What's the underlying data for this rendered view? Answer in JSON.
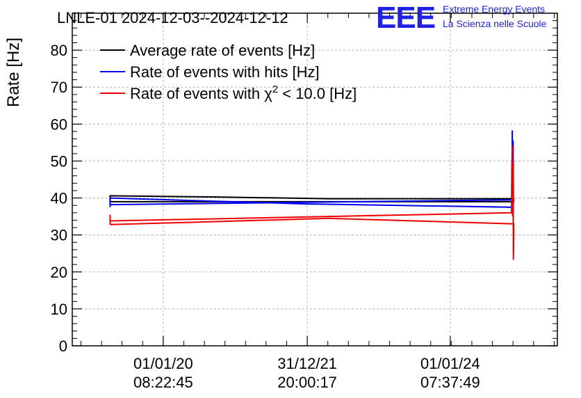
{
  "chart_data": {
    "type": "line",
    "title": "LNLE-01 2024-12-03--2024-12-12",
    "ylabel": "Rate [Hz]",
    "xlabel": "",
    "ylim": [
      0,
      90
    ],
    "yticks": [
      0,
      10,
      20,
      30,
      40,
      50,
      60,
      70,
      80
    ],
    "xticks": [
      {
        "pos": 0.1875,
        "line1": "01/01/20",
        "line2": "08:22:45"
      },
      {
        "pos": 0.4844,
        "line1": "31/12/21",
        "line2": "20:00:17"
      },
      {
        "pos": 0.7792,
        "line1": "01/01/24",
        "line2": "07:37:49"
      }
    ],
    "grid": true,
    "legend": {
      "placement": "top-left",
      "entries": [
        {
          "label": "Average rate of events [Hz]",
          "color": "#000000"
        },
        {
          "label": "Rate of events with hits [Hz]",
          "color": "#0000ee"
        },
        {
          "label_prefix": "Rate of events with ",
          "symbol": "χ",
          "sup": "2",
          "label_suffix": " < 10.0 [Hz]",
          "color": "#ee0000"
        }
      ]
    },
    "series": [
      {
        "name": "Average rate of events [Hz]",
        "color": "#000000",
        "points": [
          [
            0.0779,
            38.8
          ],
          [
            0.0779,
            40.6
          ],
          [
            0.2871,
            40.3
          ],
          [
            0.5296,
            39.8
          ],
          [
            0.9054,
            39.8
          ],
          [
            0.9101,
            39.7
          ],
          [
            0.9101,
            39.0
          ],
          [
            0.0779,
            39.0
          ]
        ]
      },
      {
        "name": "Rate of events with hits [Hz]",
        "color": "#0000ee",
        "points": [
          [
            0.0779,
            37.5
          ],
          [
            0.0779,
            40.0
          ],
          [
            0.4829,
            38.4
          ],
          [
            0.907,
            37.5
          ],
          [
            0.907,
            58.3
          ],
          [
            0.9078,
            36.5
          ],
          [
            0.9086,
            55.6
          ],
          [
            0.9093,
            39.5
          ],
          [
            0.0779,
            38.2
          ]
        ]
      },
      {
        "name": "Rate of events with χ² < 10.0 [Hz]",
        "color": "#ee0000",
        "points": [
          [
            0.0779,
            32.8
          ],
          [
            0.0779,
            35.5
          ],
          [
            0.0779,
            33.8
          ],
          [
            0.9054,
            36.0
          ],
          [
            0.9062,
            48.5
          ],
          [
            0.907,
            54.2
          ],
          [
            0.9078,
            35.0
          ],
          [
            0.9086,
            49.5
          ],
          [
            0.9093,
            23.3
          ],
          [
            0.9101,
            29.5
          ],
          [
            0.9101,
            33.0
          ],
          [
            0.5296,
            34.5
          ],
          [
            0.0779,
            32.8
          ]
        ]
      }
    ]
  },
  "header": {
    "brand_logo": "EEE",
    "brand_line1": "Extreme Energy Events",
    "brand_line2": "La Scienza nelle Scuole"
  },
  "colors": {
    "frame": "#000000",
    "grid": "#b4b4b4",
    "brand": "#1f22e6"
  }
}
